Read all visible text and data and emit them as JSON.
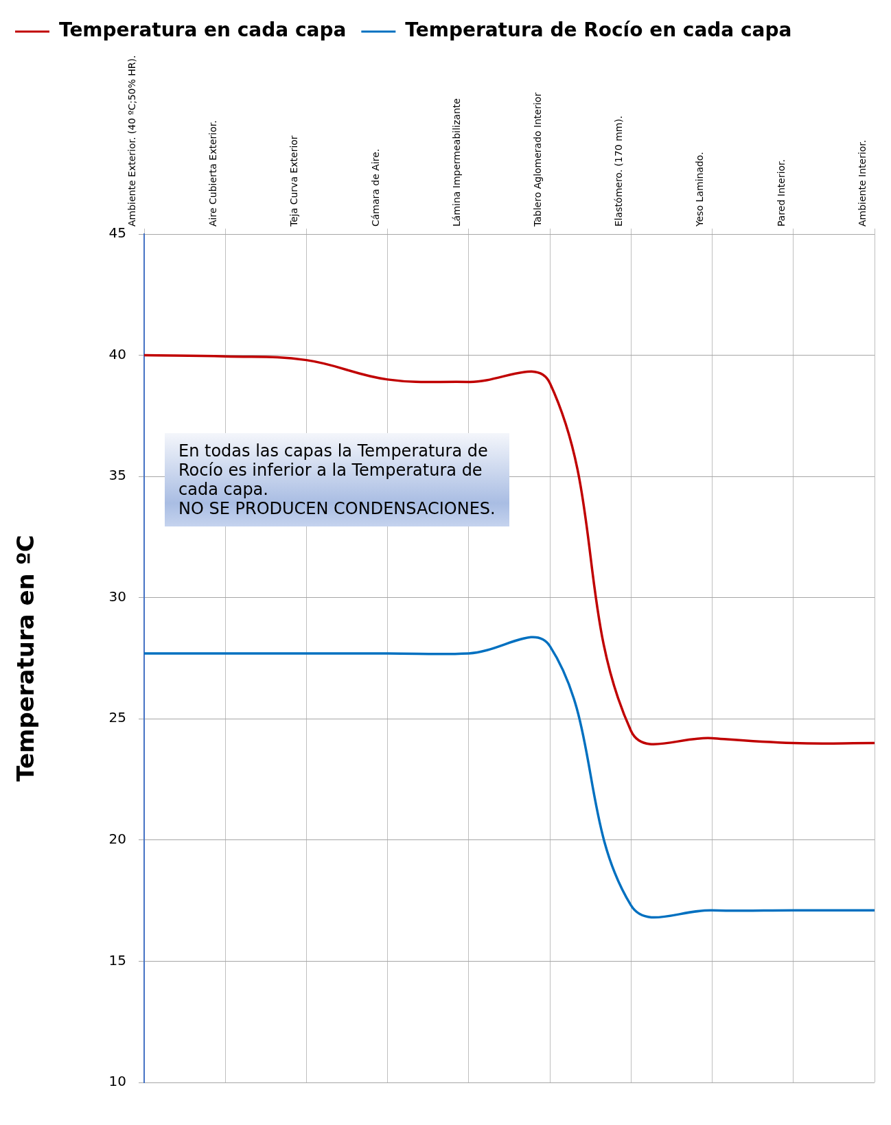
{
  "chart_data": {
    "type": "line",
    "ylabel": "Temperatura en ºC",
    "categories": [
      "Ambiente Exterior. (40 ºC;50% HR).",
      "Aire Cubierta Exterior.",
      "Teja Curva Exterior",
      "Cámara de Aire.",
      "Lámina Impermeabilizante",
      "Tablero Aglomerado Interior",
      "Elastómero. (170 mm).",
      "Yeso Laminado.",
      "Pared Interior.",
      "Ambiente Interior."
    ],
    "series": [
      {
        "name": "Temperatura en cada capa",
        "color": "#c00000",
        "values": [
          40.0,
          39.95,
          39.8,
          39.0,
          38.9,
          38.85,
          24.5,
          24.2,
          24.0,
          24.0
        ]
      },
      {
        "name": "Temperatura de Rocío en cada capa",
        "color": "#0070c0",
        "values": [
          27.7,
          27.7,
          27.7,
          27.7,
          27.7,
          28.0,
          17.3,
          17.1,
          17.1,
          17.1
        ]
      }
    ],
    "ylim": [
      10,
      45
    ],
    "yticks": [
      10,
      15,
      20,
      25,
      30,
      35,
      40,
      45
    ],
    "grid": true,
    "legend": "top",
    "marker": "none",
    "line_style": "solid",
    "annotations": [
      "En todas las capas la Temperatura de Rocío es inferior a la Temperatura de cada capa.\nNO SE PRODUCEN CONDENSACIONES."
    ]
  }
}
